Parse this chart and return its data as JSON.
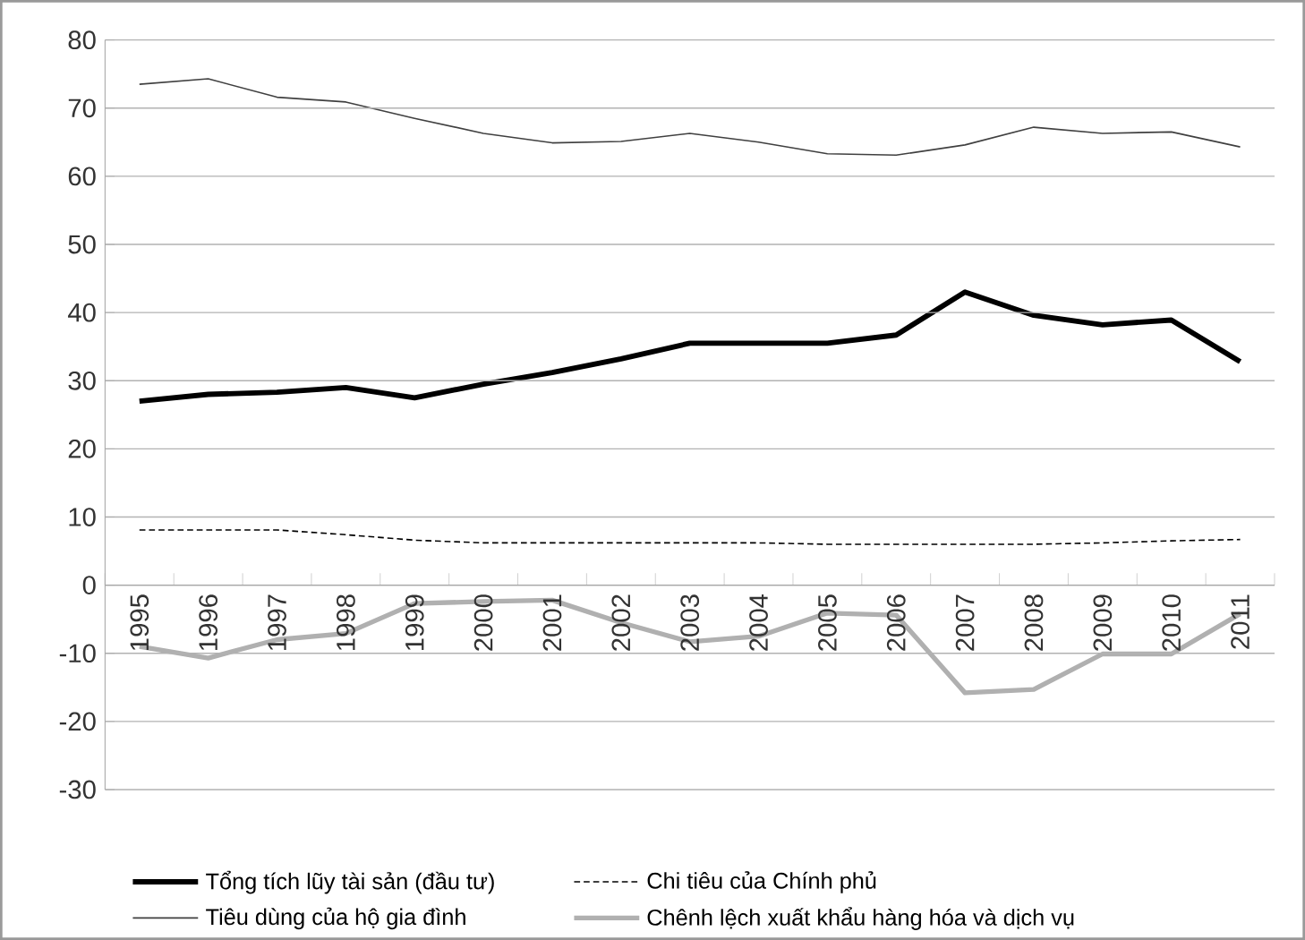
{
  "chart_data": {
    "type": "line",
    "categories": [
      "1995",
      "1996",
      "1997",
      "1998",
      "1999",
      "2000",
      "2001",
      "2002",
      "2003",
      "2004",
      "2005",
      "2006",
      "2007",
      "2008",
      "2009",
      "2010",
      "2011"
    ],
    "series": [
      {
        "name": "Tổng tích lũy tài sản (đầu tư)",
        "color": "#000000",
        "line_style": "solid",
        "values": [
          27,
          28,
          28.3,
          29,
          27.5,
          29.5,
          31.2,
          33.2,
          35.5,
          35.5,
          35.5,
          36.7,
          43,
          39.6,
          38.2,
          38.9,
          32.8
        ]
      },
      {
        "name": "Chi tiêu của Chính phủ",
        "color": "#000000",
        "line_style": "dashed",
        "values": [
          8.1,
          8.1,
          8.1,
          7.4,
          6.6,
          6.2,
          6.2,
          6.2,
          6.2,
          6.2,
          6.0,
          6.0,
          6.0,
          6.0,
          6.2,
          6.5,
          6.7
        ]
      },
      {
        "name": "Tiêu dùng của hộ gia đình",
        "color": "#404040",
        "line_style": "solid",
        "values": [
          73.5,
          74.3,
          71.6,
          70.9,
          68.5,
          66.3,
          64.9,
          65.1,
          66.3,
          65,
          63.3,
          63.1,
          64.6,
          67.2,
          66.3,
          66.5,
          64.3
        ]
      },
      {
        "name": "Chênh lệch xuất khẩu hàng hóa và dịch vụ",
        "color": "#b0b0b0",
        "line_style": "solid",
        "values": [
          -9,
          -10.7,
          -8,
          -7.1,
          -2.7,
          -2.4,
          -2.2,
          -5.5,
          -8.3,
          -7.5,
          -4.1,
          -4.4,
          -15.8,
          -15.3,
          -10.1,
          -10.1,
          -4.2
        ]
      }
    ],
    "ylim": [
      -30,
      80
    ],
    "yticks": [
      -30,
      -20,
      -10,
      0,
      10,
      20,
      30,
      40,
      50,
      60,
      70,
      80
    ],
    "grid": "y",
    "legend": "bottom",
    "marker": "none"
  }
}
